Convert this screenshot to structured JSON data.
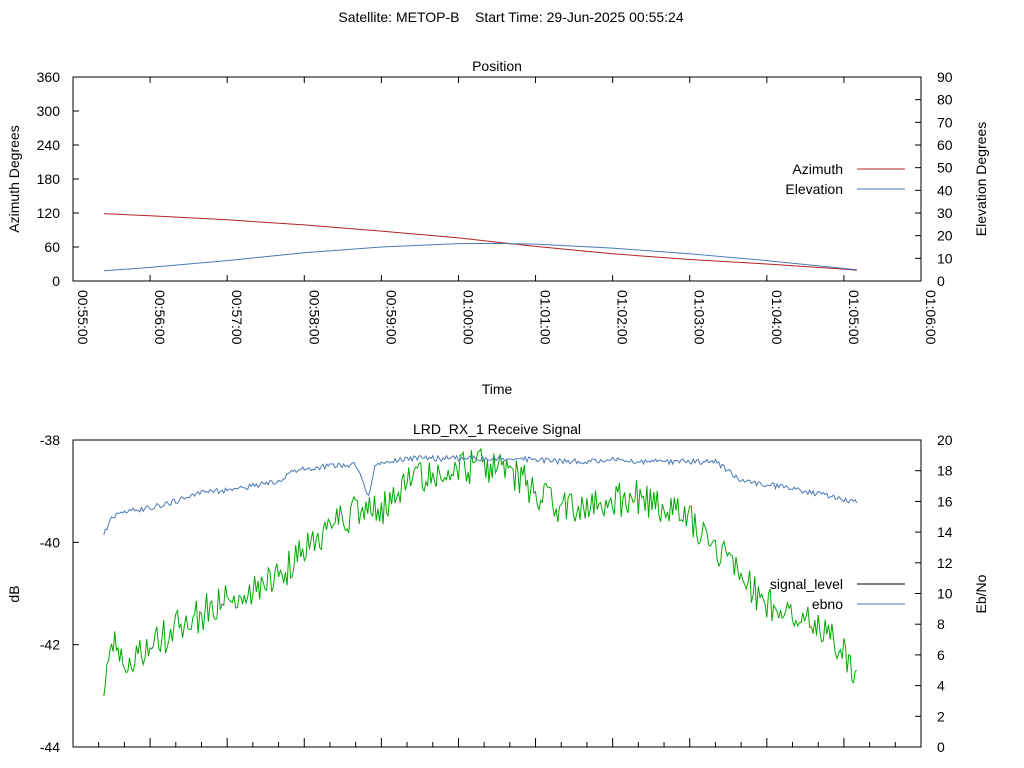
{
  "figure": {
    "title": "Satellite: METOP-B    Start Time: 29-Jun-2025 00:55:24"
  },
  "chart_data": [
    {
      "type": "line",
      "title": "Position",
      "xlabel": "Time",
      "ylabel": "Azimuth Degrees",
      "y2label": "Elevation Degrees",
      "x_ticks": [
        "00:55:00",
        "00:56:00",
        "00:57:00",
        "00:58:00",
        "00:59:00",
        "01:00:00",
        "01:01:00",
        "01:02:00",
        "01:03:00",
        "01:04:00",
        "01:05:00",
        "01:06:00"
      ],
      "xlim_seconds_from_0055": [
        0,
        660
      ],
      "ylim": [
        0,
        360
      ],
      "y_ticks": [
        "0",
        "60",
        "120",
        "180",
        "240",
        "300",
        "360"
      ],
      "y2lim": [
        0,
        90
      ],
      "y2_ticks": [
        "0",
        "10",
        "20",
        "30",
        "40",
        "50",
        "60",
        "70",
        "80",
        "90"
      ],
      "legend_position": "right",
      "grid": false,
      "series": [
        {
          "name": "Azimuth",
          "axis": "y",
          "color": "#b22222",
          "x": [
            "00:55:24",
            "00:56:00",
            "00:57:00",
            "00:58:00",
            "00:59:00",
            "01:00:00",
            "01:01:00",
            "01:02:00",
            "01:03:00",
            "01:04:00",
            "01:05:00",
            "01:05:10"
          ],
          "values": [
            119,
            115,
            108,
            99,
            88,
            76,
            61,
            48,
            38,
            30,
            21,
            19
          ]
        },
        {
          "name": "Elevation",
          "axis": "y2",
          "color": "#4a7ab5",
          "x": [
            "00:55:24",
            "00:56:00",
            "00:57:00",
            "00:58:00",
            "00:59:00",
            "01:00:00",
            "01:00:30",
            "01:01:00",
            "01:02:00",
            "01:03:00",
            "01:04:00",
            "01:05:10"
          ],
          "values": [
            4.5,
            6,
            9,
            12.5,
            15,
            16.5,
            16.6,
            16.3,
            14.5,
            12,
            9,
            5
          ]
        }
      ]
    },
    {
      "type": "line",
      "title": "LRD_RX_1 Receive Signal",
      "xlabel": "",
      "ylabel": "dB",
      "y2label": "Eb/No",
      "xlim_seconds_from_0055": [
        0,
        660
      ],
      "ylim": [
        -44,
        -38
      ],
      "y_ticks": [
        "-38",
        "-40",
        "-42",
        "-44"
      ],
      "y2lim": [
        0,
        20
      ],
      "y2_ticks": [
        "0",
        "2",
        "4",
        "6",
        "8",
        "10",
        "12",
        "14",
        "16",
        "18",
        "20"
      ],
      "legend_position": "right",
      "grid": false,
      "series": [
        {
          "name": "signal_level",
          "axis": "y",
          "color": "#00aa00",
          "legend_color": "#000000",
          "x": [
            "00:55:24",
            "00:55:30",
            "00:55:40",
            "00:56:00",
            "00:56:20",
            "00:56:40",
            "00:57:00",
            "00:57:20",
            "00:57:40",
            "00:58:00",
            "00:58:20",
            "00:58:40",
            "00:59:00",
            "00:59:20",
            "00:59:40",
            "01:00:00",
            "01:00:15",
            "01:00:30",
            "01:00:45",
            "01:01:00",
            "01:01:20",
            "01:01:40",
            "01:02:00",
            "01:02:20",
            "01:02:40",
            "01:03:00",
            "01:03:20",
            "01:03:40",
            "01:04:00",
            "01:04:20",
            "01:04:40",
            "01:05:00",
            "01:05:10"
          ],
          "values": [
            -42.7,
            -41.9,
            -42.3,
            -42.0,
            -41.7,
            -41.4,
            -41.1,
            -40.9,
            -40.7,
            -40.1,
            -39.7,
            -39.4,
            -39.4,
            -38.8,
            -38.7,
            -38.6,
            -38.5,
            -38.6,
            -38.7,
            -39.0,
            -39.3,
            -39.4,
            -39.2,
            -39.1,
            -39.3,
            -39.5,
            -40.1,
            -40.7,
            -41.2,
            -41.4,
            -41.6,
            -42.2,
            -42.5
          ]
        },
        {
          "name": "ebno",
          "axis": "y2",
          "color": "#4a7ab5",
          "x": [
            "00:55:24",
            "00:55:30",
            "00:55:40",
            "00:56:00",
            "00:56:20",
            "00:56:40",
            "00:57:00",
            "00:57:20",
            "00:57:40",
            "00:57:50",
            "00:58:00",
            "00:58:20",
            "00:58:40",
            "00:58:50",
            "00:58:55",
            "00:59:00",
            "00:59:20",
            "00:59:40",
            "01:00:00",
            "01:00:20",
            "01:00:40",
            "01:01:00",
            "01:01:20",
            "01:01:40",
            "01:02:00",
            "01:02:20",
            "01:02:40",
            "01:03:00",
            "01:03:20",
            "01:03:40",
            "01:04:00",
            "01:04:20",
            "01:04:40",
            "01:05:00",
            "01:05:10"
          ],
          "values": [
            13.9,
            15.0,
            15.3,
            15.6,
            16.0,
            16.6,
            16.7,
            17.0,
            17.3,
            17.9,
            18.1,
            18.3,
            18.4,
            16.3,
            18.2,
            18.6,
            18.8,
            18.8,
            18.8,
            18.8,
            18.8,
            18.7,
            18.6,
            18.6,
            18.7,
            18.6,
            18.6,
            18.6,
            18.6,
            17.3,
            17.1,
            16.8,
            16.5,
            16.1,
            15.9
          ]
        }
      ]
    }
  ]
}
